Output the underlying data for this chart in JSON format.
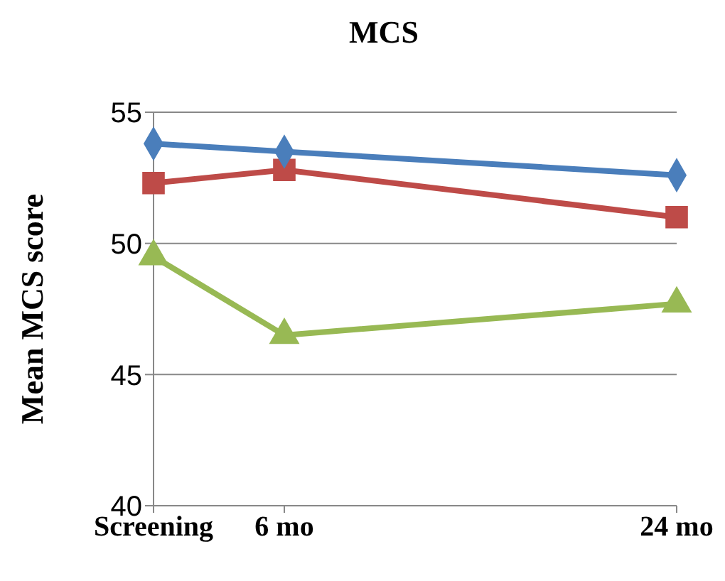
{
  "chart_data": {
    "type": "line",
    "title": "MCS",
    "ylabel": "Mean MCS score",
    "x": [
      0,
      6,
      24
    ],
    "xlim": [
      0,
      24
    ],
    "xticks": [
      {
        "value": 0,
        "label": "Screening"
      },
      {
        "value": 6,
        "label": "6 mo"
      },
      {
        "value": 24,
        "label": "24 mo"
      }
    ],
    "ylim": [
      40,
      55
    ],
    "yticks": [
      40,
      45,
      50,
      55
    ],
    "grid": "y",
    "legend": false,
    "series": [
      {
        "color": "#4a7ebb",
        "marker": "diamond",
        "values": [
          53.8,
          53.5,
          52.6
        ]
      },
      {
        "color": "#be4b48",
        "marker": "square",
        "values": [
          52.3,
          52.8,
          51.0
        ]
      },
      {
        "color": "#98b954",
        "marker": "triangle",
        "values": [
          49.5,
          46.5,
          47.7
        ]
      }
    ]
  }
}
